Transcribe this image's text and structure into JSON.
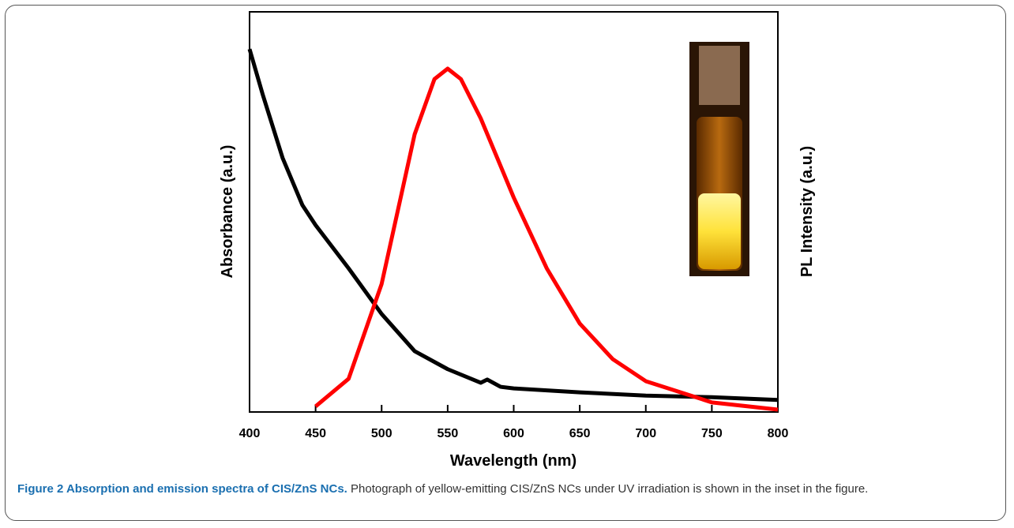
{
  "chart_data": {
    "type": "line",
    "xlabel": "Wavelength (nm)",
    "ylabel": "Absorbance (a.u.)",
    "y2label": "PL Intensity (a.u.)",
    "xlim": [
      400,
      800
    ],
    "xticks": [
      400,
      450,
      500,
      550,
      600,
      650,
      700,
      750,
      800
    ],
    "ylim": [
      0,
      1
    ],
    "y2lim": [
      0,
      1
    ],
    "series": [
      {
        "color": "#000000",
        "x": [
          400,
          410,
          425,
          440,
          450,
          475,
          500,
          525,
          550,
          575,
          580,
          590,
          600,
          650,
          700,
          750,
          800
        ],
        "values": [
          0.907,
          0.793,
          0.635,
          0.517,
          0.467,
          0.359,
          0.245,
          0.152,
          0.107,
          0.073,
          0.081,
          0.063,
          0.059,
          0.049,
          0.041,
          0.037,
          0.03
        ]
      },
      {
        "color": "#ff0000",
        "axis": "y2",
        "x": [
          450,
          475,
          500,
          525,
          540,
          550,
          560,
          575,
          600,
          625,
          650,
          675,
          700,
          750,
          800
        ],
        "values": [
          0.014,
          0.083,
          0.32,
          0.694,
          0.832,
          0.858,
          0.832,
          0.734,
          0.536,
          0.359,
          0.221,
          0.132,
          0.077,
          0.024,
          0.006
        ]
      }
    ]
  },
  "caption": {
    "label": "Figure 2 Absorption and emission spectra of CIS/ZnS NCs.",
    "text": "Photograph of yellow-emitting CIS/ZnS NCs under UV irradiation is shown in the inset in the figure."
  }
}
